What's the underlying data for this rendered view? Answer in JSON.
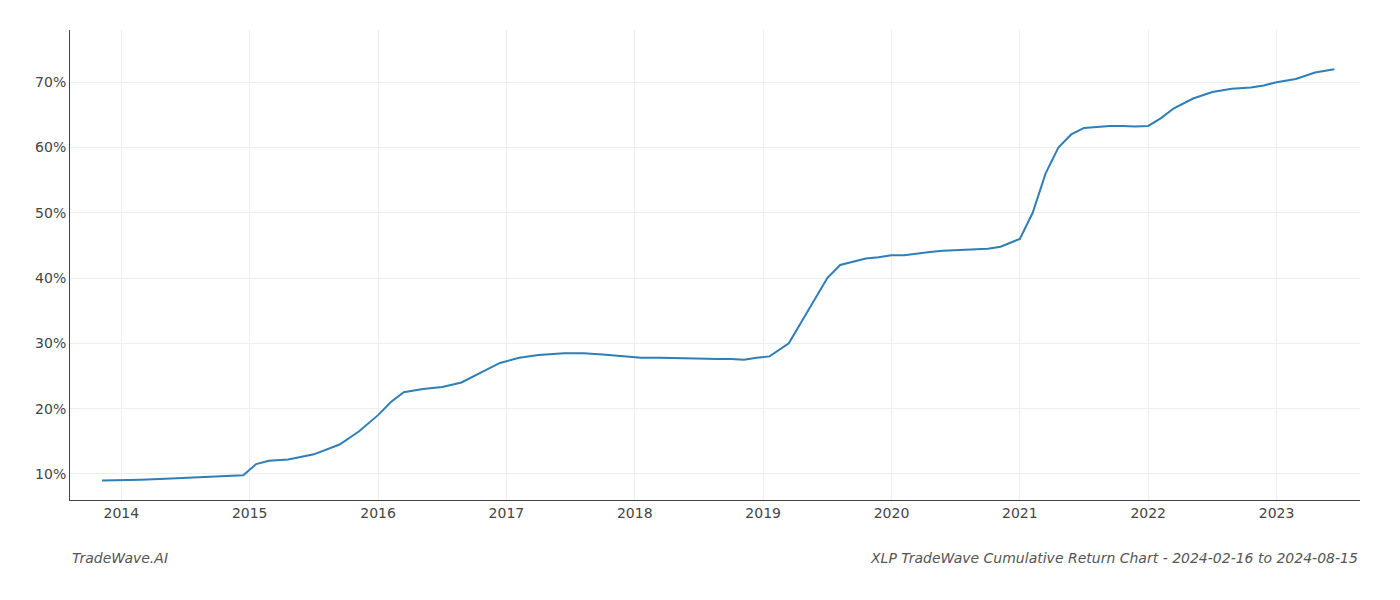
{
  "chart_data": {
    "type": "line",
    "title": "XLP TradeWave Cumulative Return Chart - 2024-02-16 to 2024-08-15",
    "annotations": [
      "TradeWave.AI"
    ],
    "x": [
      2013.85,
      2014.0,
      2014.15,
      2014.3,
      2014.5,
      2014.65,
      2014.8,
      2014.95,
      2015.05,
      2015.15,
      2015.3,
      2015.5,
      2015.7,
      2015.85,
      2016.0,
      2016.1,
      2016.2,
      2016.35,
      2016.5,
      2016.65,
      2016.8,
      2016.95,
      2017.1,
      2017.25,
      2017.45,
      2017.6,
      2017.75,
      2017.9,
      2018.05,
      2018.2,
      2018.35,
      2018.5,
      2018.65,
      2018.75,
      2018.85,
      2018.95,
      2019.05,
      2019.2,
      2019.35,
      2019.5,
      2019.6,
      2019.7,
      2019.8,
      2019.9,
      2020.0,
      2020.1,
      2020.2,
      2020.3,
      2020.4,
      2020.5,
      2020.6,
      2020.65,
      2020.7,
      2020.75,
      2020.85,
      2021.0,
      2021.1,
      2021.2,
      2021.3,
      2021.4,
      2021.5,
      2021.6,
      2021.7,
      2021.8,
      2021.9,
      2022.0,
      2022.1,
      2022.2,
      2022.35,
      2022.5,
      2022.65,
      2022.8,
      2022.9,
      2023.0,
      2023.15,
      2023.3,
      2023.45
    ],
    "values": [
      9.0,
      9.0,
      9.1,
      9.2,
      9.4,
      9.5,
      9.6,
      9.8,
      11.5,
      12.0,
      12.2,
      13.0,
      14.5,
      16.5,
      19.0,
      21.0,
      22.5,
      23.0,
      23.3,
      24.0,
      25.5,
      27.0,
      27.8,
      28.2,
      28.5,
      28.5,
      28.3,
      28.0,
      27.8,
      27.8,
      27.7,
      27.7,
      27.6,
      27.6,
      27.5,
      27.8,
      28.0,
      30.0,
      35.0,
      40.0,
      42.0,
      42.5,
      43.0,
      43.2,
      43.5,
      43.5,
      43.8,
      44.0,
      44.2,
      44.3,
      44.3,
      44.4,
      44.4,
      44.5,
      44.8,
      46.0,
      50.0,
      56.0,
      60.0,
      62.0,
      63.0,
      63.2,
      63.3,
      63.3,
      63.2,
      63.3,
      64.5,
      66.0,
      67.5,
      68.5,
      69.0,
      69.2,
      69.5,
      70.0,
      70.5,
      71.5,
      72.0
    ],
    "color": "#2e7eb8",
    "xlim": [
      2013.6,
      2023.65
    ],
    "ylim": [
      6,
      78
    ],
    "xticks": [
      2014,
      2015,
      2016,
      2017,
      2018,
      2019,
      2020,
      2021,
      2022,
      2023
    ],
    "yticks": [
      {
        "value": 10,
        "label": "10%"
      },
      {
        "value": 20,
        "label": "20%"
      },
      {
        "value": 30,
        "label": "30%"
      },
      {
        "value": 40,
        "label": "40%"
      },
      {
        "value": 50,
        "label": "50%"
      },
      {
        "value": 60,
        "label": "60%"
      },
      {
        "value": 70,
        "label": "70%"
      }
    ],
    "grid": true
  }
}
